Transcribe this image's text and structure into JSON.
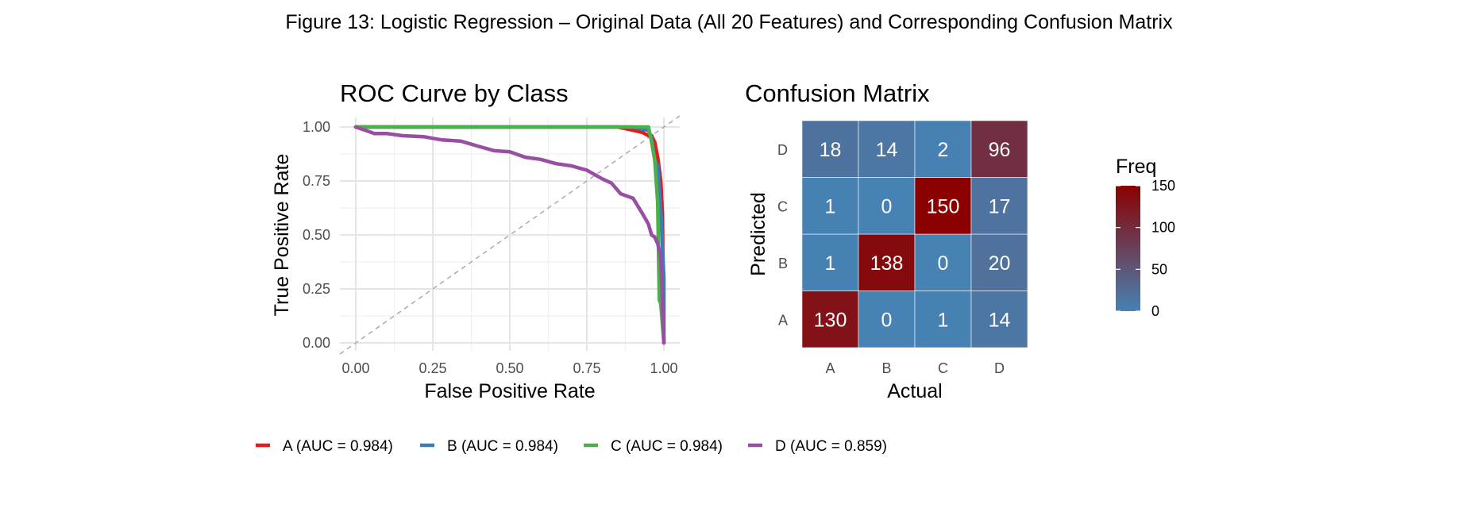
{
  "figure_title": "Figure 13: Logistic Regression – Original Data (All 20 Features) and Corresponding Confusion Matrix",
  "chart_data": [
    {
      "type": "line",
      "title": "ROC Curve by Class",
      "xlabel": "False Positive Rate",
      "ylabel": "True Positive Rate",
      "xlim": [
        0,
        1
      ],
      "ylim": [
        0,
        1
      ],
      "xticks": [
        "0.00",
        "0.25",
        "0.50",
        "0.75",
        "1.00"
      ],
      "yticks": [
        "0.00",
        "0.25",
        "0.50",
        "0.75",
        "1.00"
      ],
      "grid": true,
      "diagonal_reference": true,
      "legend_position": "bottom",
      "series": [
        {
          "name": "A (AUC = 0.984)",
          "color": "#E41A1C",
          "x": [
            0,
            0.85,
            0.9,
            0.93,
            0.95,
            0.96,
            0.97,
            0.98,
            0.99,
            0.995,
            1.0
          ],
          "y": [
            1,
            1,
            0.985,
            0.975,
            0.96,
            0.96,
            0.93,
            0.86,
            0.75,
            0.6,
            0
          ]
        },
        {
          "name": "B (AUC = 0.984)",
          "color": "#377EB8",
          "x": [
            0,
            0.9,
            0.93,
            0.95,
            0.96,
            0.97,
            0.98,
            0.99,
            0.995,
            1.0,
            1.0
          ],
          "y": [
            1,
            1,
            0.99,
            0.985,
            0.95,
            0.85,
            0.82,
            0.62,
            0.45,
            0.3,
            0
          ]
        },
        {
          "name": "C (AUC = 0.984)",
          "color": "#4DAF4A",
          "x": [
            0,
            0.95,
            0.96,
            0.97,
            0.98,
            0.985,
            0.99,
            1.0
          ],
          "y": [
            1,
            1,
            0.93,
            0.85,
            0.65,
            0.2,
            0.18,
            0
          ]
        },
        {
          "name": "D (AUC = 0.859)",
          "color": "#984EA3",
          "x": [
            0,
            0.04,
            0.06,
            0.1,
            0.15,
            0.22,
            0.28,
            0.34,
            0.4,
            0.45,
            0.5,
            0.55,
            0.6,
            0.65,
            0.7,
            0.75,
            0.8,
            0.83,
            0.86,
            0.9,
            0.93,
            0.95,
            0.96,
            0.97,
            0.98,
            0.99,
            0.995,
            1.0
          ],
          "y": [
            1,
            0.98,
            0.97,
            0.97,
            0.96,
            0.955,
            0.94,
            0.935,
            0.91,
            0.89,
            0.885,
            0.86,
            0.85,
            0.83,
            0.82,
            0.8,
            0.76,
            0.74,
            0.69,
            0.67,
            0.6,
            0.55,
            0.5,
            0.49,
            0.46,
            0.4,
            0.2,
            0
          ]
        }
      ]
    },
    {
      "type": "heatmap",
      "title": "Confusion Matrix",
      "xlabel": "Actual",
      "ylabel": "Predicted",
      "x_categories": [
        "A",
        "B",
        "C",
        "D"
      ],
      "y_categories": [
        "A",
        "B",
        "C",
        "D"
      ],
      "values": [
        [
          130,
          0,
          1,
          14
        ],
        [
          1,
          138,
          0,
          20
        ],
        [
          1,
          0,
          150,
          17
        ],
        [
          18,
          14,
          2,
          96
        ]
      ],
      "legend": {
        "title": "Freq",
        "range": [
          0,
          150
        ],
        "ticks": [
          0,
          50,
          100,
          150
        ],
        "low_color": "#4682B4",
        "high_color": "#8B0000",
        "position": "right"
      }
    }
  ]
}
